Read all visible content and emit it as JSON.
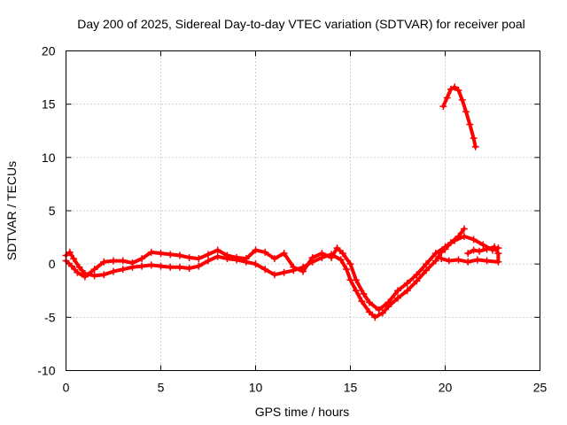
{
  "chart_data": {
    "type": "scatter",
    "title": "Day 200 of 2025, Sidereal Day-to-day VTEC variation (SDTVAR) for receiver poal",
    "xlabel": "GPS time / hours",
    "ylabel": "SDTVAR / TECUs",
    "xlim": [
      0,
      25
    ],
    "ylim": [
      -10,
      20
    ],
    "xticks": [
      "0",
      "5",
      "10",
      "15",
      "20",
      "25"
    ],
    "yticks": [
      "-10",
      "-5",
      "0",
      "5",
      "10",
      "15",
      "20"
    ],
    "grid": true,
    "marker": "+",
    "series": [
      {
        "name": "track-1",
        "color": "#ff0000",
        "points": [
          [
            0.0,
            0.8
          ],
          [
            0.2,
            1.1
          ],
          [
            0.4,
            0.5
          ],
          [
            0.7,
            -0.3
          ],
          [
            1.0,
            -0.9
          ],
          [
            1.5,
            -1.1
          ],
          [
            2.0,
            -1.0
          ],
          [
            2.5,
            -0.7
          ],
          [
            3.0,
            -0.5
          ],
          [
            3.5,
            -0.3
          ],
          [
            4.0,
            -0.2
          ],
          [
            4.5,
            -0.1
          ],
          [
            5.0,
            -0.2
          ],
          [
            5.5,
            -0.3
          ],
          [
            6.0,
            -0.3
          ],
          [
            6.5,
            -0.4
          ],
          [
            7.0,
            -0.2
          ],
          [
            7.5,
            0.3
          ],
          [
            8.0,
            0.7
          ],
          [
            8.5,
            0.5
          ],
          [
            9.0,
            0.4
          ],
          [
            9.5,
            0.2
          ],
          [
            10.0,
            0.0
          ],
          [
            10.5,
            -0.5
          ],
          [
            11.0,
            -1.0
          ],
          [
            11.5,
            -0.8
          ],
          [
            12.0,
            -0.6
          ],
          [
            12.5,
            -0.3
          ],
          [
            13.0,
            0.2
          ],
          [
            13.5,
            0.6
          ],
          [
            14.0,
            0.9
          ],
          [
            14.5,
            0.4
          ],
          [
            14.8,
            -0.5
          ],
          [
            15.0,
            -1.5
          ],
          [
            15.3,
            -2.5
          ],
          [
            15.6,
            -3.5
          ],
          [
            16.0,
            -4.5
          ],
          [
            16.3,
            -5.0
          ],
          [
            16.7,
            -4.6
          ],
          [
            17.0,
            -4.0
          ],
          [
            17.5,
            -3.2
          ],
          [
            18.0,
            -2.5
          ],
          [
            18.5,
            -1.6
          ],
          [
            19.0,
            -0.6
          ],
          [
            19.5,
            0.3
          ],
          [
            19.8,
            1.1
          ],
          [
            20.0,
            1.4
          ],
          [
            20.3,
            2.0
          ],
          [
            20.7,
            2.6
          ],
          [
            21.0,
            3.3
          ]
        ]
      },
      {
        "name": "track-2",
        "color": "#ff0000",
        "points": [
          [
            0.0,
            0.3
          ],
          [
            0.3,
            -0.2
          ],
          [
            0.6,
            -0.8
          ],
          [
            1.0,
            -1.2
          ],
          [
            1.5,
            -0.5
          ],
          [
            2.0,
            0.2
          ],
          [
            2.5,
            0.3
          ],
          [
            3.0,
            0.3
          ],
          [
            3.5,
            0.1
          ],
          [
            4.0,
            0.5
          ],
          [
            4.5,
            1.1
          ],
          [
            5.0,
            1.0
          ],
          [
            5.5,
            0.9
          ],
          [
            6.0,
            0.8
          ],
          [
            6.5,
            0.6
          ],
          [
            7.0,
            0.5
          ],
          [
            7.5,
            0.9
          ],
          [
            8.0,
            1.3
          ],
          [
            8.5,
            0.8
          ],
          [
            9.0,
            0.6
          ],
          [
            9.5,
            0.5
          ],
          [
            10.0,
            1.3
          ],
          [
            10.5,
            1.1
          ],
          [
            11.0,
            0.5
          ],
          [
            11.5,
            1.0
          ],
          [
            12.0,
            -0.3
          ],
          [
            12.5,
            -0.7
          ],
          [
            13.0,
            0.6
          ],
          [
            13.5,
            1.0
          ],
          [
            14.0,
            0.6
          ],
          [
            14.3,
            1.5
          ],
          [
            14.6,
            1.0
          ],
          [
            15.0,
            0.0
          ],
          [
            15.3,
            -1.5
          ],
          [
            15.7,
            -2.8
          ],
          [
            16.0,
            -3.6
          ],
          [
            16.5,
            -4.3
          ],
          [
            17.0,
            -3.6
          ],
          [
            17.5,
            -2.5
          ],
          [
            18.0,
            -1.8
          ],
          [
            18.5,
            -1.0
          ],
          [
            19.0,
            0.0
          ],
          [
            19.5,
            1.0
          ],
          [
            20.0,
            1.6
          ],
          [
            20.5,
            2.2
          ],
          [
            21.0,
            2.6
          ],
          [
            21.5,
            2.3
          ],
          [
            22.0,
            1.8
          ],
          [
            22.5,
            1.3
          ],
          [
            22.8,
            1.5
          ]
        ]
      },
      {
        "name": "track-3",
        "color": "#ff0000",
        "points": [
          [
            19.8,
            0.5
          ],
          [
            20.2,
            0.3
          ],
          [
            20.7,
            0.4
          ],
          [
            21.2,
            0.2
          ],
          [
            21.7,
            0.4
          ],
          [
            22.2,
            0.3
          ],
          [
            22.8,
            0.2
          ],
          [
            22.8,
            1.0
          ],
          [
            22.6,
            1.6
          ],
          [
            22.2,
            1.4
          ],
          [
            21.8,
            1.2
          ],
          [
            21.5,
            1.3
          ],
          [
            21.2,
            1.0
          ]
        ]
      },
      {
        "name": "track-4",
        "color": "#ff0000",
        "points": [
          [
            19.9,
            14.8
          ],
          [
            20.1,
            15.6
          ],
          [
            20.3,
            16.4
          ],
          [
            20.5,
            16.6
          ],
          [
            20.7,
            16.3
          ],
          [
            20.9,
            15.4
          ],
          [
            21.1,
            14.3
          ],
          [
            21.3,
            13.1
          ],
          [
            21.5,
            11.8
          ],
          [
            21.6,
            11.0
          ]
        ]
      }
    ]
  }
}
